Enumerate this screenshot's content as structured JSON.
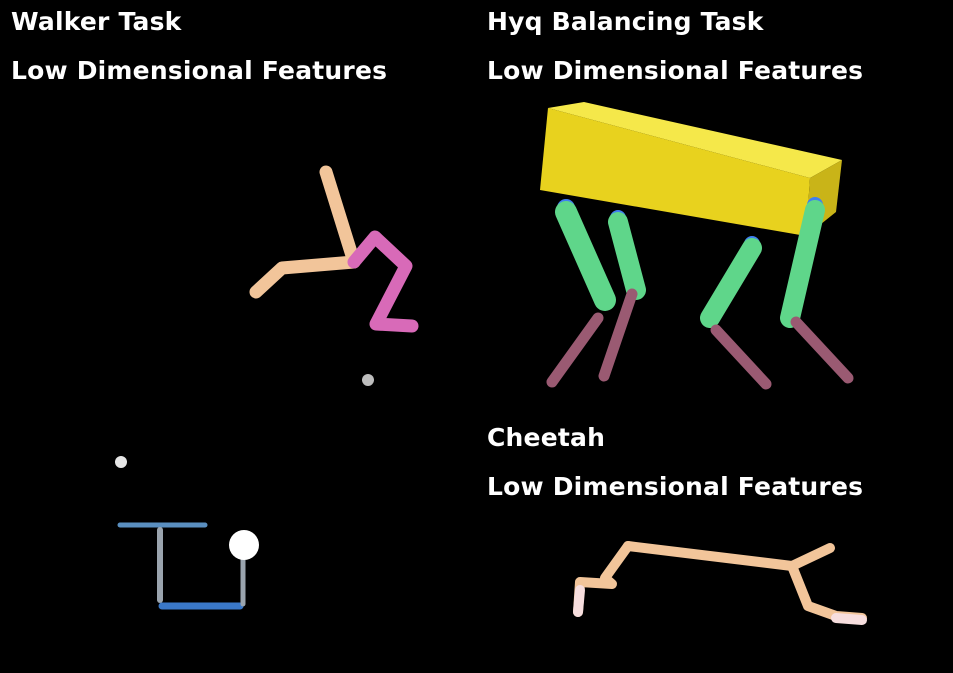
{
  "panels": {
    "walker": {
      "title": "Walker Task",
      "subtitle": "Low Dimensional Features"
    },
    "hyq": {
      "title": "Hyq Balancing Task",
      "subtitle": "Low Dimensional Features"
    },
    "cheetah": {
      "title": "Cheetah",
      "subtitle": "Low Dimensional Features"
    }
  },
  "colors": {
    "background": "#000000",
    "text": "#ffffff",
    "walker_left_leg": "#f2c59a",
    "walker_right_leg": "#d86ab8",
    "hyq_body": "#f0e030",
    "hyq_upper_leg": "#5fd68a",
    "hyq_lower_leg": "#9a5a72",
    "hyq_hip": "#3f7ff0",
    "cheetah_body": "#f2c59a",
    "cheetah_foot": "#f7dede",
    "reacher_arm": "#3a78c8",
    "reacher_link": "#9aa4ae"
  }
}
